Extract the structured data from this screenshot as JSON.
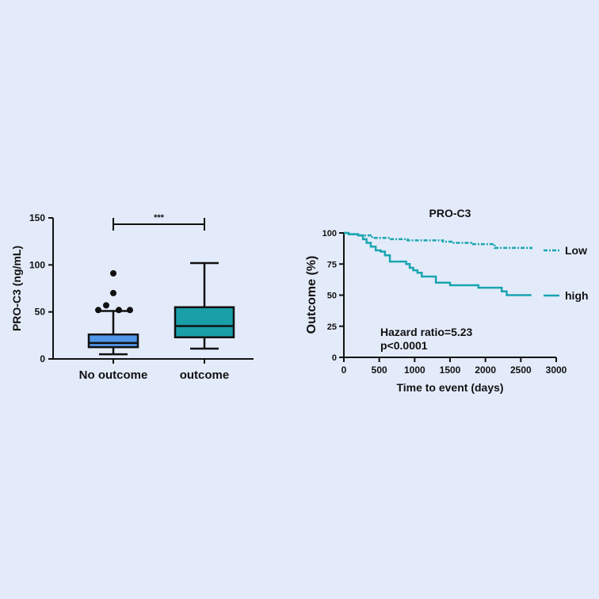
{
  "chart_data": [
    {
      "type": "box",
      "title": "",
      "ylabel": "PRO-C3 (ng/mL)",
      "ylim": [
        0,
        150
      ],
      "yticks": [
        "0",
        "50",
        "100",
        "150"
      ],
      "categories": [
        "No outcome",
        "outcome"
      ],
      "boxes": [
        {
          "name": "No outcome",
          "min": 5,
          "q1": 12.5,
          "median": 17,
          "q3": 26,
          "max": 51,
          "outliers": [
            91,
            70,
            57,
            52,
            52,
            52
          ],
          "color": "#4f96ea"
        },
        {
          "name": "outcome",
          "min": 11,
          "q1": 23,
          "median": 35,
          "q3": 55,
          "max": 102,
          "outliers": [],
          "color": "#1a9ea8"
        }
      ],
      "significance": {
        "label": "***",
        "y": 143
      }
    },
    {
      "type": "line",
      "title": "PRO-C3",
      "xlabel": "Time to event (days)",
      "ylabel": "Outcome (%)",
      "xlim": [
        0,
        3000
      ],
      "ylim": [
        0,
        100
      ],
      "xticks": [
        "0",
        "500",
        "1000",
        "1500",
        "2000",
        "2500",
        "3000"
      ],
      "yticks": [
        "0",
        "25",
        "50",
        "75",
        "100"
      ],
      "annotation": [
        "Hazard ratio=5.23",
        "p<0.0001"
      ],
      "series": [
        {
          "name": "Low",
          "style": "dashed",
          "color": "#1aa5b0",
          "x": [
            0,
            60,
            200,
            400,
            650,
            900,
            1200,
            1400,
            1550,
            1800,
            2100,
            2130,
            2400,
            2650
          ],
          "y": [
            100,
            99,
            98,
            96,
            95,
            94,
            94,
            93,
            92,
            91,
            91,
            88,
            88,
            87
          ]
        },
        {
          "name": "high",
          "style": "solid",
          "color": "#1aa5b0",
          "x": [
            0,
            70,
            200,
            270,
            320,
            380,
            450,
            520,
            580,
            650,
            880,
            930,
            980,
            1040,
            1100,
            1300,
            1500,
            1900,
            2230,
            2300,
            2650
          ],
          "y": [
            100,
            99,
            98,
            95,
            92,
            89,
            86,
            85,
            82,
            77,
            75,
            72,
            70,
            68,
            65,
            60,
            58,
            56,
            53,
            50,
            50
          ]
        }
      ]
    }
  ]
}
